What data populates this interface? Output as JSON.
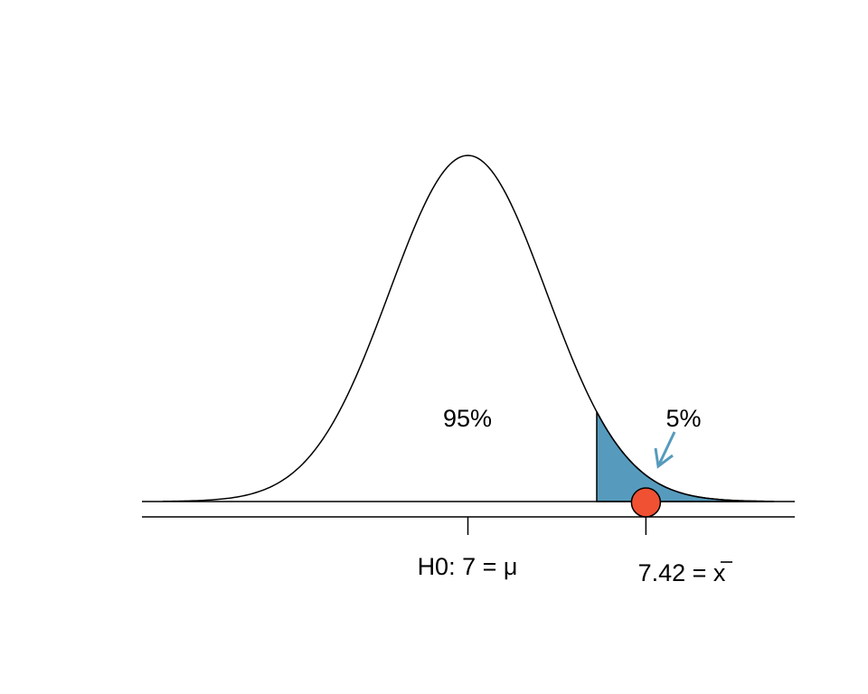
{
  "chart_data": {
    "type": "area",
    "distribution": "normal",
    "mean": 7,
    "sd": 0.185,
    "xlim": [
      6.28,
      7.72
    ],
    "shaded_region": {
      "from": 7.304,
      "to": 7.72,
      "color": "#569bbd"
    },
    "area_labels": {
      "center": "95%",
      "tail": "5%"
    },
    "ticks": [
      {
        "value": 7,
        "label_text": "H0: 7 = ",
        "label_symbol": "μ"
      },
      {
        "value": 7.42,
        "label_text": "7.42 = ",
        "label_symbol": "x"
      }
    ],
    "sample_mean": {
      "value": 7.42,
      "color": "#f05133"
    },
    "arrow_color": "#569bbd"
  }
}
